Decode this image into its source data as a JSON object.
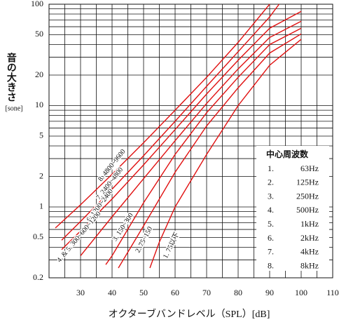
{
  "chart_data": {
    "type": "line",
    "ylabel": "音の大きさ",
    "yunit": "[sone]",
    "xlabel": "オクターブバンドレベル（SPL）[dB]",
    "xlim": [
      20,
      110
    ],
    "xticks": [
      30,
      40,
      50,
      60,
      70,
      80,
      90,
      100,
      110
    ],
    "xgrid": [
      25,
      30,
      35,
      40,
      45,
      50,
      55,
      60,
      65,
      70,
      75,
      80,
      85,
      90,
      95,
      100,
      105
    ],
    "ylim": [
      0.2,
      100
    ],
    "ylog": true,
    "yticks": [
      0.2,
      0.5,
      1,
      2,
      5,
      10,
      20,
      50,
      100
    ],
    "ygrid": [
      0.3,
      0.4,
      0.6,
      0.7,
      0.8,
      0.9,
      3,
      4,
      6,
      7,
      8,
      9,
      30,
      40,
      60,
      70,
      80,
      90
    ],
    "grid": true,
    "series": [
      {
        "name": "8. 4800~9600",
        "color": "#e01010",
        "x": [
          22,
          30,
          40,
          50,
          60,
          70,
          80,
          90
        ],
        "values": [
          0.62,
          1.05,
          2.1,
          4.3,
          9,
          19,
          42,
          100
        ]
      },
      {
        "name": "7. 2400~4800",
        "color": "#e01010",
        "x": [
          24,
          30,
          40,
          50,
          60,
          70,
          80,
          90,
          93
        ],
        "values": [
          0.47,
          0.72,
          1.5,
          3.2,
          7,
          15.5,
          34,
          75,
          100
        ]
      },
      {
        "name": "6. 1200~2400",
        "color": "#e01010",
        "x": [
          24,
          30,
          40,
          50,
          60,
          70,
          80,
          90,
          100
        ],
        "values": [
          0.38,
          0.58,
          1.2,
          2.6,
          5.8,
          13,
          28,
          58,
          85
        ]
      },
      {
        "name": "4. & 5. 300~600~1200",
        "color": "#e01010",
        "x": [
          30,
          40,
          50,
          60,
          70,
          80,
          90,
          100
        ],
        "values": [
          0.33,
          0.8,
          1.9,
          4.5,
          10.5,
          23,
          47,
          68
        ]
      },
      {
        "name": "3. 150~300",
        "color": "#e01010",
        "x": [
          38,
          40,
          50,
          60,
          70,
          80,
          90,
          100
        ],
        "values": [
          0.27,
          0.33,
          1.1,
          3.3,
          8.5,
          19,
          40,
          58
        ]
      },
      {
        "name": "2. 75~150",
        "color": "#e01010",
        "x": [
          42,
          50,
          60,
          70,
          80,
          90,
          100
        ],
        "values": [
          0.25,
          0.65,
          2.2,
          6.3,
          15,
          33,
          51
        ]
      },
      {
        "name": "1. 75以下",
        "color": "#e01010",
        "x": [
          52,
          55,
          60,
          70,
          80,
          90,
          100
        ],
        "values": [
          0.25,
          0.45,
          1,
          3.3,
          10,
          25,
          45
        ]
      }
    ],
    "legend_table": {
      "title": "中心周波数",
      "rows": [
        [
          "1.",
          "63Hz"
        ],
        [
          "2.",
          "125Hz"
        ],
        [
          "3.",
          "250Hz"
        ],
        [
          "4.",
          "500Hz"
        ],
        [
          "5.",
          "1kHz"
        ],
        [
          "6.",
          "2kHz"
        ],
        [
          "7.",
          "4kHz"
        ],
        [
          "8.",
          "8kHz"
        ]
      ]
    }
  }
}
